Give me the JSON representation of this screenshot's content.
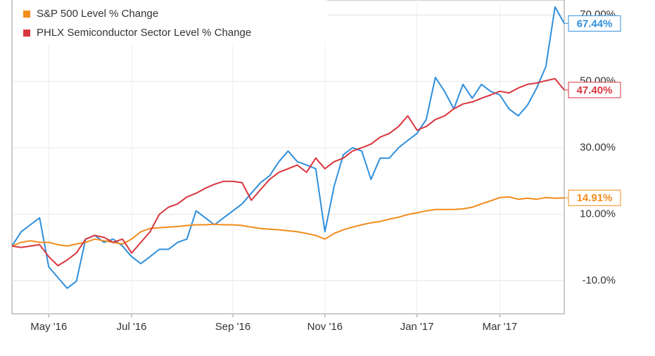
{
  "chart_data": {
    "type": "line",
    "categories": [
      null,
      null,
      null,
      null,
      "May '16",
      null,
      null,
      null,
      null,
      null,
      null,
      null,
      null,
      "Jul '16",
      null,
      null,
      null,
      null,
      null,
      null,
      null,
      null,
      null,
      null,
      "Sep '16",
      null,
      null,
      null,
      null,
      null,
      null,
      null,
      null,
      null,
      "Nov '16",
      null,
      null,
      null,
      null,
      null,
      null,
      null,
      null,
      null,
      "Jan '17",
      null,
      null,
      null,
      null,
      null,
      null,
      null,
      null,
      "Mar '17",
      null,
      null,
      null,
      null,
      null,
      null,
      null
    ],
    "series": [
      {
        "color": "#2f8fdc",
        "values": [
          0.4,
          4.7,
          6.8,
          8.9,
          -5.9,
          -9.1,
          -12.3,
          -10.2,
          2.5,
          3.6,
          1.5,
          2.5,
          0.4,
          -2.8,
          -4.9,
          -2.8,
          -0.6,
          -0.6,
          1.5,
          2.5,
          11,
          8.9,
          6.8,
          8.9,
          11,
          13.1,
          16.3,
          19.5,
          21.6,
          25.8,
          29,
          25.8,
          24.8,
          23.7,
          4.7,
          18.4,
          27.9,
          30,
          29,
          20.5,
          26.9,
          26.9,
          30,
          32.2,
          34.3,
          38.5,
          51.2,
          47,
          41.7,
          49.1,
          44.9,
          49.1,
          47,
          45.9,
          41.7,
          39.6,
          42.8,
          48,
          54.4,
          72.4,
          67.44
        ],
        "value_labels": [
          null,
          null,
          null,
          null,
          null,
          null,
          null,
          null,
          null,
          null,
          null,
          null,
          null,
          null,
          null,
          null,
          null,
          null,
          null,
          null,
          null,
          null,
          null,
          null,
          null,
          null,
          null,
          null,
          null,
          null,
          null,
          null,
          null,
          null,
          null,
          null,
          null,
          null,
          null,
          null,
          null,
          null,
          null,
          null,
          null,
          null,
          null,
          null,
          null,
          null,
          null,
          null,
          null,
          null,
          null,
          null,
          null,
          null,
          null,
          null,
          "67.44%"
        ]
      },
      {
        "name": "S&P 500 Level % Change",
        "color": "#f28c1c",
        "values": [
          0.4,
          1.5,
          2,
          1.5,
          1.5,
          0.8,
          0.4,
          1,
          1.5,
          2.5,
          2,
          1.5,
          1,
          2.5,
          4.7,
          5.7,
          5.9,
          6.1,
          6.3,
          6.6,
          6.8,
          6.8,
          7,
          6.8,
          6.8,
          6.6,
          6.1,
          5.7,
          5.5,
          5.3,
          5,
          4.7,
          4.2,
          3.6,
          2.5,
          4.2,
          5.3,
          6.1,
          6.8,
          7.4,
          7.8,
          8.5,
          9.1,
          9.9,
          10.4,
          11,
          11.4,
          11.4,
          11.4,
          11.6,
          12.1,
          13.1,
          14,
          15,
          15.2,
          14.5,
          14.8,
          14.5,
          15,
          14.8,
          14.91
        ],
        "value_labels": [
          null,
          null,
          null,
          null,
          null,
          null,
          null,
          null,
          null,
          null,
          null,
          null,
          null,
          null,
          null,
          null,
          null,
          null,
          null,
          null,
          null,
          null,
          null,
          null,
          null,
          null,
          null,
          null,
          null,
          null,
          null,
          null,
          null,
          null,
          null,
          null,
          null,
          null,
          null,
          null,
          null,
          null,
          null,
          null,
          null,
          null,
          null,
          null,
          null,
          null,
          null,
          null,
          null,
          null,
          null,
          null,
          null,
          null,
          null,
          null,
          "14.91%"
        ]
      },
      {
        "name": "PHLX Semiconductor Sector Level % Change",
        "color": "#d9363e",
        "values": [
          0.4,
          0,
          0.4,
          0.8,
          -2.8,
          -5.5,
          -3.8,
          -1.7,
          2.5,
          3.6,
          3,
          1.5,
          2.5,
          -1.7,
          1.5,
          4.7,
          9.9,
          12.1,
          13.1,
          15.2,
          16.3,
          17.8,
          19,
          19.9,
          19.9,
          19.5,
          14.2,
          17.4,
          20.5,
          22.6,
          23.7,
          24.8,
          22.6,
          26.9,
          23.7,
          25.8,
          26.9,
          29,
          30,
          31.1,
          33.2,
          34.3,
          36.4,
          39.6,
          35.3,
          36.4,
          38.5,
          39.6,
          41.7,
          43.2,
          43.8,
          44.9,
          45.9,
          47,
          46.5,
          48,
          49.1,
          49.5,
          50.2,
          50.8,
          47.4
        ],
        "value_labels": [
          null,
          null,
          null,
          null,
          null,
          null,
          null,
          null,
          null,
          null,
          null,
          null,
          null,
          null,
          null,
          null,
          null,
          null,
          null,
          null,
          null,
          null,
          null,
          null,
          null,
          null,
          null,
          null,
          null,
          null,
          null,
          null,
          null,
          null,
          null,
          null,
          null,
          null,
          null,
          null,
          null,
          null,
          null,
          null,
          null,
          null,
          null,
          null,
          null,
          null,
          null,
          null,
          null,
          null,
          null,
          null,
          null,
          null,
          null,
          null,
          "47.40%"
        ]
      }
    ],
    "ylim": [
      -20,
      74.5
    ],
    "yticks": [
      {
        "value": -10,
        "label": "-10.0%"
      },
      {
        "value": 10,
        "label": "10.00%"
      },
      {
        "value": 30,
        "label": "30.00%"
      },
      {
        "value": 50,
        "label": "50.00%"
      },
      {
        "value": 70,
        "label": "70.00%"
      }
    ],
    "grid": true
  }
}
